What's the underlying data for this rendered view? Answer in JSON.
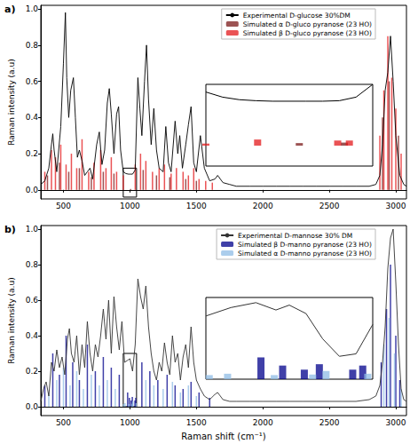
{
  "chart_data": [
    {
      "type": "line",
      "title": "a)",
      "ylabel": "Raman intensity (a.u)",
      "xlim": [
        330,
        3080
      ],
      "xticks": [
        500,
        1000,
        1500,
        2000,
        2500,
        3000
      ],
      "ylim": [
        -0.05,
        1.02
      ],
      "yticks": [
        {
          "value": 0,
          "label": "0.0"
        },
        0.2,
        0.4,
        0.6,
        0.8,
        {
          "value": 1,
          "label": "1.0"
        }
      ],
      "grid": false,
      "legend": "upper right",
      "series": [
        {
          "name": "Experimental D-glucose 30%DM",
          "type": "line",
          "color": "#000000",
          "x": [
            330,
            360,
            390,
            410,
            420,
            430,
            450,
            480,
            500,
            515,
            525,
            540,
            555,
            575,
            590,
            605,
            620,
            640,
            660,
            680,
            700,
            720,
            750,
            770,
            790,
            810,
            830,
            845,
            860,
            880,
            900,
            915,
            930,
            950,
            970,
            990,
            1000,
            1020,
            1040,
            1060,
            1075,
            1090,
            1110,
            1125,
            1140,
            1160,
            1180,
            1200,
            1220,
            1250,
            1270,
            1290,
            1310,
            1340,
            1360,
            1375,
            1395,
            1420,
            1440,
            1460,
            1480,
            1500,
            1530,
            1560,
            1600,
            1640,
            1660,
            1700,
            1750,
            1800,
            1900,
            2000,
            2100,
            2200,
            2300,
            2400,
            2500,
            2600,
            2700,
            2800,
            2850,
            2880,
            2900,
            2920,
            2940,
            2960,
            2980,
            3000,
            3030,
            3060,
            3080
          ],
          "values": [
            0.03,
            0.05,
            0.12,
            0.25,
            0.31,
            0.22,
            0.1,
            0.35,
            0.7,
            0.98,
            0.62,
            0.4,
            0.55,
            0.62,
            0.4,
            0.18,
            0.22,
            0.16,
            0.08,
            0.1,
            0.12,
            0.06,
            0.25,
            0.32,
            0.14,
            0.22,
            0.48,
            0.56,
            0.42,
            0.2,
            0.42,
            0.46,
            0.22,
            0.1,
            0.09,
            0.087,
            0.087,
            0.087,
            0.11,
            0.62,
            0.45,
            0.3,
            0.6,
            0.8,
            0.5,
            0.25,
            0.45,
            0.22,
            0.12,
            0.1,
            0.35,
            0.15,
            0.1,
            0.38,
            0.2,
            0.3,
            0.12,
            0.25,
            0.36,
            0.46,
            0.15,
            0.1,
            0.3,
            0.12,
            0.05,
            0.06,
            0.08,
            0.04,
            0.03,
            0.02,
            0.02,
            0.02,
            0.02,
            0.02,
            0.02,
            0.02,
            0.02,
            0.02,
            0.02,
            0.02,
            0.03,
            0.08,
            0.25,
            0.55,
            0.65,
            0.85,
            0.6,
            0.3,
            0.08,
            0.03,
            0.02
          ]
        },
        {
          "name": "Simulated α D-gluco pyranose (23 HO)",
          "type": "bar",
          "color": "#7b1a1a",
          "x": [
            380,
            470,
            540,
            620,
            710,
            800,
            880,
            1006,
            1100,
            1200,
            1300,
            1420,
            1500,
            2900,
            2950,
            3020
          ],
          "values": [
            0.08,
            0.15,
            0.1,
            0.12,
            0.07,
            0.1,
            0.09,
            0.005,
            0.11,
            0.08,
            0.07,
            0.06,
            0.05,
            0.4,
            0.6,
            0.3
          ]
        },
        {
          "name": "Simulated β D-gluco pyranose (23 HO)",
          "type": "bar",
          "color": "#e3191c",
          "x": [
            360,
            410,
            440,
            480,
            520,
            560,
            600,
            640,
            690,
            730,
            780,
            820,
            860,
            900,
            950,
            1040,
            1080,
            1120,
            1170,
            1220,
            1260,
            1310,
            1350,
            1400,
            1440,
            1480,
            1520,
            1570,
            1620,
            2880,
            2910,
            2940,
            2970,
            3000,
            3040
          ],
          "values": [
            0.1,
            0.22,
            0.18,
            0.25,
            0.14,
            0.2,
            0.12,
            0.28,
            0.1,
            0.15,
            0.22,
            0.12,
            0.18,
            0.1,
            0.08,
            0.14,
            0.2,
            0.16,
            0.1,
            0.12,
            0.14,
            0.09,
            0.12,
            0.1,
            0.08,
            0.12,
            0.06,
            0.05,
            0.04,
            0.3,
            0.55,
            0.85,
            0.62,
            0.45,
            0.2
          ]
        }
      ]
    },
    {
      "type": "line",
      "tick_labels": false,
      "xlim": [
        950,
        1050
      ],
      "ylim": [
        -0.04,
        0.12
      ],
      "series": [
        {
          "type": "line",
          "color": "#000000",
          "x": [
            950,
            960,
            970,
            980,
            990,
            1000,
            1010,
            1020,
            1030,
            1040,
            1050
          ],
          "values": [
            0.105,
            0.095,
            0.09,
            0.088,
            0.087,
            0.087,
            0.087,
            0.087,
            0.088,
            0.095,
            0.12
          ]
        },
        {
          "type": "bar",
          "color": "#7b1a1a",
          "x": [
            1006,
            1033
          ],
          "values": [
            0.005,
            0.006
          ]
        },
        {
          "type": "bar",
          "color": "#e3191c",
          "x": [
            950,
            981,
            1029,
            1036
          ],
          "values": [
            0.004,
            0.012,
            0.01,
            0.01
          ]
        }
      ]
    },
    {
      "type": "line",
      "title": "b)",
      "ylabel": "Raman intensity (a.u)",
      "xlabel": "Raman shift (cm⁻¹)",
      "xlim": [
        330,
        3080
      ],
      "xticks": [
        500,
        1000,
        1500,
        2000,
        2500,
        3000
      ],
      "ylim": [
        -0.05,
        1.02
      ],
      "yticks": [
        {
          "value": 0,
          "label": "0.0"
        },
        0.2,
        0.4,
        0.6,
        0.8,
        {
          "value": 1,
          "label": "1.0"
        }
      ],
      "grid": false,
      "legend": "upper right",
      "series": [
        {
          "name": "Experimental D-mannose 30% DM",
          "type": "line",
          "color": "#333333",
          "x": [
            330,
            350,
            370,
            390,
            410,
            430,
            450,
            470,
            490,
            510,
            530,
            545,
            560,
            580,
            600,
            620,
            640,
            660,
            680,
            700,
            720,
            740,
            760,
            780,
            800,
            820,
            840,
            860,
            880,
            900,
            920,
            940,
            960,
            980,
            1000,
            1020,
            1040,
            1060,
            1080,
            1100,
            1120,
            1140,
            1160,
            1180,
            1200,
            1220,
            1240,
            1260,
            1280,
            1300,
            1320,
            1340,
            1360,
            1380,
            1400,
            1420,
            1440,
            1460,
            1480,
            1500,
            1530,
            1560,
            1600,
            1640,
            1660,
            1680,
            1700,
            1750,
            1800,
            1900,
            2000,
            2100,
            2200,
            2300,
            2400,
            2500,
            2600,
            2700,
            2800,
            2850,
            2880,
            2900,
            2920,
            2940,
            2960,
            2980,
            3000,
            3020,
            3040,
            3060,
            3080
          ],
          "values": [
            0.03,
            0.1,
            0.14,
            0.06,
            0.25,
            0.2,
            0.32,
            0.22,
            0.28,
            0.18,
            0.38,
            0.44,
            0.3,
            0.25,
            0.4,
            0.18,
            0.35,
            0.22,
            0.48,
            0.3,
            0.2,
            0.35,
            0.28,
            0.4,
            0.55,
            0.38,
            0.6,
            0.3,
            0.62,
            0.45,
            0.32,
            0.48,
            0.25,
            0.26,
            0.27,
            0.2,
            0.35,
            0.72,
            0.62,
            0.55,
            0.68,
            0.45,
            0.3,
            0.2,
            0.15,
            0.25,
            0.2,
            0.36,
            0.25,
            0.18,
            0.4,
            0.25,
            0.3,
            0.15,
            0.28,
            0.35,
            0.22,
            0.45,
            0.25,
            0.15,
            0.1,
            0.06,
            0.04,
            0.07,
            0.08,
            0.06,
            0.04,
            0.03,
            0.03,
            0.03,
            0.03,
            0.03,
            0.03,
            0.03,
            0.03,
            0.03,
            0.03,
            0.03,
            0.04,
            0.06,
            0.12,
            0.25,
            0.45,
            0.78,
            0.95,
            1.0,
            0.7,
            0.35,
            0.1,
            0.04,
            0.03
          ]
        },
        {
          "name": "Simulated β D-manno pyranose (23 HO)",
          "type": "bar",
          "color": "#00008b",
          "x": [
            360,
            420,
            470,
            520,
            570,
            620,
            680,
            740,
            800,
            860,
            920,
            983,
            996,
            1009,
            1018,
            1038,
            1044,
            1090,
            1150,
            1210,
            1280,
            1340,
            1400,
            1460,
            1520,
            1600,
            2890,
            2930,
            2960,
            3000,
            3030
          ],
          "values": [
            0.12,
            0.3,
            0.18,
            0.4,
            0.25,
            0.15,
            0.35,
            0.2,
            0.28,
            0.22,
            0.18,
            0.08,
            0.05,
            0.035,
            0.055,
            0.035,
            0.05,
            0.25,
            0.2,
            0.15,
            0.18,
            0.12,
            0.1,
            0.14,
            0.08,
            0.05,
            0.25,
            0.55,
            0.8,
            0.4,
            0.15
          ]
        },
        {
          "name": "Simulated α D-manno pyranose (23 HO)",
          "type": "bar",
          "color": "#8fbce6",
          "x": [
            390,
            450,
            500,
            550,
            600,
            650,
            710,
            770,
            830,
            890,
            952,
            963,
            991,
            1014,
            1022,
            1047,
            1120,
            1180,
            1250,
            1320,
            1380,
            1440,
            1500,
            2910,
            2950,
            2990,
            3040
          ],
          "values": [
            0.08,
            0.15,
            0.22,
            0.12,
            0.2,
            0.1,
            0.18,
            0.12,
            0.15,
            0.1,
            0.015,
            0.02,
            0.015,
            0.017,
            0.03,
            0.02,
            0.15,
            0.12,
            0.1,
            0.14,
            0.08,
            0.12,
            0.06,
            0.35,
            0.5,
            0.3,
            0.1
          ]
        }
      ]
    },
    {
      "type": "line",
      "tick_labels": false,
      "xlim": [
        950,
        1050
      ],
      "ylim": [
        0,
        0.3
      ],
      "series": [
        {
          "type": "line",
          "color": "#333333",
          "x": [
            950,
            965,
            980,
            992,
            1000,
            1010,
            1020,
            1030,
            1040,
            1050
          ],
          "values": [
            0.232,
            0.263,
            0.281,
            0.254,
            0.272,
            0.241,
            0.148,
            0.084,
            0.093,
            0.201
          ]
        },
        {
          "type": "bar",
          "color": "#00008b",
          "x": [
            983,
            996,
            1009,
            1018,
            1038,
            1044
          ],
          "values": [
            0.08,
            0.05,
            0.035,
            0.055,
            0.035,
            0.05
          ]
        },
        {
          "type": "bar",
          "color": "#8fbce6",
          "x": [
            952,
            963,
            991,
            1014,
            1022,
            1047
          ],
          "values": [
            0.015,
            0.02,
            0.015,
            0.017,
            0.03,
            0.02
          ]
        }
      ]
    }
  ]
}
